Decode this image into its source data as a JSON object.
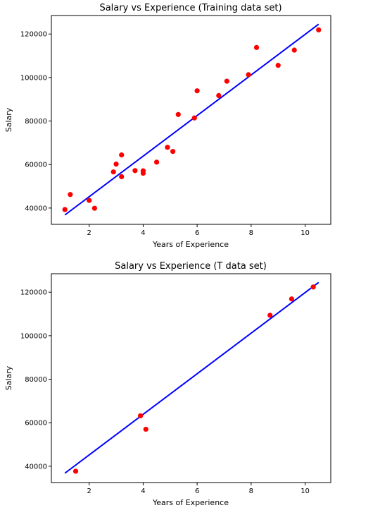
{
  "chart_data": [
    {
      "type": "scatter",
      "title": "Salary vs Experience (Training data set)",
      "xlabel": "Years of Experience",
      "ylabel": "Salary",
      "xlim": [
        0.6,
        10.95
      ],
      "ylim": [
        32500,
        128500
      ],
      "xticks": [
        2,
        4,
        6,
        8,
        10
      ],
      "yticks": [
        40000,
        60000,
        80000,
        100000,
        120000
      ],
      "grid": false,
      "colors": {
        "points": "#ff0000",
        "line": "#0000ff"
      },
      "series": [
        {
          "type": "scatter",
          "x": [
            1.1,
            1.3,
            2.0,
            2.2,
            2.9,
            3.0,
            3.2,
            3.2,
            3.7,
            4.0,
            4.0,
            4.5,
            4.9,
            5.1,
            5.3,
            5.9,
            6.0,
            6.8,
            7.1,
            7.9,
            8.2,
            9.0,
            9.6,
            10.5
          ],
          "y": [
            39300,
            46200,
            43500,
            39900,
            56600,
            60200,
            54400,
            64400,
            57200,
            56000,
            57100,
            61100,
            67900,
            66000,
            83000,
            81400,
            93900,
            91700,
            98300,
            101300,
            113800,
            105600,
            112600,
            121900
          ]
        },
        {
          "type": "line",
          "x": [
            1.1,
            10.5
          ],
          "y": [
            36800,
            124500
          ]
        }
      ]
    },
    {
      "type": "scatter",
      "title": "Salary vs Experience (T data set)",
      "xlabel": "Years of Experience",
      "ylabel": "Salary",
      "xlim": [
        0.6,
        10.95
      ],
      "ylim": [
        32500,
        128500
      ],
      "xticks": [
        2,
        4,
        6,
        8,
        10
      ],
      "yticks": [
        40000,
        60000,
        80000,
        100000,
        120000
      ],
      "grid": false,
      "colors": {
        "points": "#ff0000",
        "line": "#0000ff"
      },
      "series": [
        {
          "type": "scatter",
          "x": [
            1.5,
            3.9,
            4.1,
            8.7,
            9.5,
            10.3
          ],
          "y": [
            37700,
            63200,
            57000,
            109400,
            116900,
            122400
          ]
        },
        {
          "type": "line",
          "x": [
            1.1,
            10.5
          ],
          "y": [
            36800,
            124500
          ]
        }
      ]
    }
  ]
}
